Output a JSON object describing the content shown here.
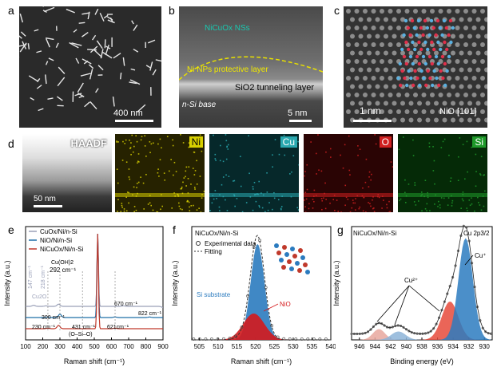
{
  "panels": {
    "a": {
      "letter": "a",
      "scale": "400 nm"
    },
    "b": {
      "letter": "b",
      "label_nsheets": "NiCuOx NSs",
      "label_np": "Ni NPs protective layer",
      "label_sio2": "SiO2 tunneling layer",
      "label_si": "n-Si base",
      "scale": "5 nm"
    },
    "c": {
      "letter": "c",
      "scale": "1 nm",
      "label": "NiO [101]"
    },
    "d": {
      "letter": "d",
      "maps": [
        "HAADF",
        "Ni",
        "Cu",
        "O",
        "Si"
      ],
      "scale": "50 nm",
      "colors": {
        "ni": "#d8d000",
        "cu": "#2aa9b0",
        "o": "#d02020",
        "si": "#1f9a2a"
      }
    },
    "e": {
      "letter": "e",
      "legend": [
        "CuOx/Ni/n-Si",
        "NiO/Ni/n-Si",
        "NiCuOx/Ni/n-Si"
      ],
      "xlabel": "Raman shift (cm⁻¹)",
      "ylabel": "Intensity (a.u.)",
      "annotations": [
        "147 cm⁻¹",
        "218 cm⁻¹",
        "Cu2O",
        "Cu(OH)2",
        "292 cm⁻¹",
        "300 cm⁻¹",
        "230 cm⁻¹",
        "431 cm⁻¹",
        "(O–Si–O)",
        "621cm⁻¹",
        "670 cm⁻¹",
        "822 cm⁻¹"
      ]
    },
    "f": {
      "letter": "f",
      "title": "NiCuOx/Ni/n-Si",
      "legend_points": "Experimental data",
      "legend_fit": "Fitting",
      "label_si": "Si substrate",
      "label_nio": "NiO",
      "xlabel": "Raman shift (cm⁻¹)",
      "ylabel": "Intensity (a.u.)"
    },
    "g": {
      "letter": "g",
      "title": "NiCuOx/Ni/n-Si",
      "region": "Cu 2p3/2",
      "label_cu2": "Cu²⁺",
      "label_cu1": "Cu⁺",
      "xlabel": "Binding energy (eV)",
      "ylabel": "Intensity (a.u.)"
    }
  },
  "chart_data": [
    {
      "type": "line",
      "panel": "e",
      "title": "",
      "xlabel": "Raman shift (cm⁻¹)",
      "ylabel": "Intensity (a.u.)",
      "xlim": [
        100,
        900
      ],
      "xticks": [
        100,
        200,
        300,
        400,
        500,
        600,
        700,
        800,
        900
      ],
      "series": [
        {
          "name": "CuOx/Ni/n-Si",
          "color": "#9aa0b8",
          "x": [
            100,
            147,
            218,
            292,
            431,
            520,
            621,
            670,
            822,
            900
          ],
          "y": [
            3.0,
            3.1,
            3.05,
            3.2,
            3.0,
            9.5,
            3.0,
            3.05,
            3.0,
            2.9
          ]
        },
        {
          "name": "NiO/Ni/n-Si",
          "color": "#1f6fa8",
          "x": [
            100,
            230,
            300,
            431,
            520,
            621,
            670,
            822,
            900
          ],
          "y": [
            2.0,
            2.05,
            2.3,
            2.0,
            9.5,
            2.05,
            2.0,
            2.05,
            2.0
          ]
        },
        {
          "name": "NiCuOx/Ni/n-Si",
          "color": "#c0392b",
          "x": [
            100,
            230,
            292,
            431,
            520,
            621,
            670,
            822,
            900
          ],
          "y": [
            1.0,
            1.05,
            1.3,
            1.0,
            9.5,
            1.05,
            1.0,
            1.0,
            1.0
          ]
        }
      ]
    },
    {
      "type": "line",
      "panel": "f",
      "title": "NiCuOx/Ni/n-Si",
      "xlabel": "Raman shift (cm⁻¹)",
      "ylabel": "Intensity (a.u.)",
      "xlim": [
        503,
        540
      ],
      "xticks": [
        505,
        510,
        515,
        520,
        525,
        530,
        535,
        540
      ],
      "series": [
        {
          "name": "Si substrate",
          "color": "#2b7bbf",
          "center": 520.5,
          "width": 2.6,
          "amplitude": 0.8
        },
        {
          "name": "NiO",
          "color": "#d4191c",
          "center": 519.5,
          "width": 4.0,
          "amplitude": 0.22
        },
        {
          "name": "Fitting",
          "color": "#333333"
        },
        {
          "name": "Experimental data",
          "color": "#444444"
        }
      ]
    },
    {
      "type": "line",
      "panel": "g",
      "title": "NiCuOx/Ni/n-Si",
      "xlabel": "Binding energy (eV)",
      "ylabel": "Intensity (a.u.)",
      "xlim": [
        947,
        929
      ],
      "xticks": [
        946,
        944,
        942,
        940,
        938,
        936,
        934,
        932,
        930
      ],
      "series": [
        {
          "name": "Cu⁺",
          "color": "#2b7bbf",
          "center": 932.4,
          "width": 1.3,
          "amplitude": 0.85
        },
        {
          "name": "Cu²⁺",
          "color": "#e64a3b",
          "center": 934.4,
          "width": 1.5,
          "amplitude": 0.32
        },
        {
          "name": "Cu²⁺ satellite 1",
          "color": "#e8a79e",
          "center": 943.5,
          "width": 1.1,
          "amplitude": 0.09
        },
        {
          "name": "Cu²⁺ satellite 2",
          "color": "#8db4d8",
          "center": 941.0,
          "width": 1.3,
          "amplitude": 0.07
        }
      ]
    }
  ]
}
